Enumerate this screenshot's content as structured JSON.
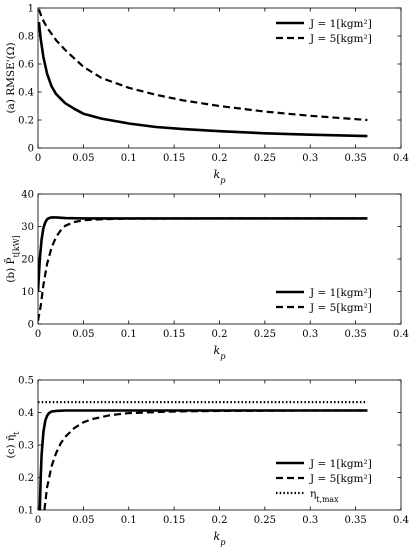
{
  "chart_data": [
    {
      "type": "line",
      "panel": "a",
      "ylabel": "(a) RMSE'(Ω)",
      "xlabel": "k_p",
      "xlim": [
        0,
        0.4
      ],
      "ylim": [
        0,
        1
      ],
      "xticks": [
        "0",
        "0.05",
        "0.1",
        "0.15",
        "0.2",
        "0.25",
        "0.3",
        "0.35",
        "0.4"
      ],
      "yticks": [
        "0",
        "0.2",
        "0.4",
        "0.6",
        "0.8",
        "1"
      ],
      "grid": false,
      "legend_position": "top-right",
      "series": [
        {
          "name": "J = 1[kgm²]",
          "style": "solid",
          "x": [
            0.001,
            0.003,
            0.006,
            0.01,
            0.015,
            0.02,
            0.03,
            0.04,
            0.05,
            0.07,
            0.1,
            0.13,
            0.16,
            0.2,
            0.25,
            0.3,
            0.363
          ],
          "y": [
            0.9,
            0.78,
            0.65,
            0.53,
            0.44,
            0.385,
            0.32,
            0.28,
            0.245,
            0.21,
            0.175,
            0.15,
            0.135,
            0.12,
            0.105,
            0.095,
            0.085
          ]
        },
        {
          "name": "J = 5[kgm²]",
          "style": "dashed",
          "x": [
            0.001,
            0.005,
            0.01,
            0.02,
            0.03,
            0.04,
            0.05,
            0.07,
            0.1,
            0.13,
            0.16,
            0.2,
            0.25,
            0.3,
            0.363
          ],
          "y": [
            0.99,
            0.92,
            0.86,
            0.77,
            0.7,
            0.64,
            0.58,
            0.5,
            0.43,
            0.38,
            0.34,
            0.3,
            0.26,
            0.23,
            0.2
          ]
        }
      ]
    },
    {
      "type": "line",
      "panel": "b",
      "ylabel": "(b) P̄_t[kW]",
      "xlabel": "k_p",
      "xlim": [
        0,
        0.4
      ],
      "ylim": [
        0,
        40
      ],
      "xticks": [
        "0",
        "0.05",
        "0.1",
        "0.15",
        "0.2",
        "0.25",
        "0.3",
        "0.35",
        "0.4"
      ],
      "yticks": [
        "0",
        "10",
        "20",
        "30",
        "40"
      ],
      "grid": false,
      "legend_position": "bottom-right",
      "series": [
        {
          "name": "J = 1[kgm²]",
          "style": "solid",
          "x": [
            0,
            0.002,
            0.004,
            0.006,
            0.008,
            0.01,
            0.012,
            0.015,
            0.02,
            0.03,
            0.05,
            0.1,
            0.2,
            0.3,
            0.363
          ],
          "y": [
            10,
            20,
            26,
            29.5,
            31.3,
            32.2,
            32.6,
            32.8,
            32.8,
            32.6,
            32.5,
            32.5,
            32.5,
            32.5,
            32.5
          ]
        },
        {
          "name": "J = 5[kgm²]",
          "style": "dashed",
          "x": [
            0,
            0.003,
            0.006,
            0.01,
            0.015,
            0.02,
            0.025,
            0.03,
            0.04,
            0.05,
            0.06,
            0.08,
            0.1,
            0.2,
            0.3,
            0.363
          ],
          "y": [
            1,
            5.5,
            12,
            18.5,
            23.5,
            26.8,
            28.8,
            30.2,
            31.4,
            31.9,
            32.1,
            32.3,
            32.4,
            32.5,
            32.5,
            32.5
          ]
        }
      ]
    },
    {
      "type": "line",
      "panel": "c",
      "ylabel": "(c) η̄_t",
      "xlabel": "k_p",
      "xlim": [
        0,
        0.4
      ],
      "ylim": [
        0.1,
        0.5
      ],
      "xticks": [
        "0",
        "0.05",
        "0.1",
        "0.15",
        "0.2",
        "0.25",
        "0.3",
        "0.35",
        "0.4"
      ],
      "yticks": [
        "0.1",
        "0.2",
        "0.3",
        "0.4",
        "0.5"
      ],
      "grid": false,
      "legend_position": "bottom-right",
      "series": [
        {
          "name": "J = 1[kgm²]",
          "style": "solid",
          "x": [
            0.002,
            0.003,
            0.004,
            0.006,
            0.008,
            0.01,
            0.012,
            0.015,
            0.02,
            0.03,
            0.05,
            0.1,
            0.2,
            0.3,
            0.363
          ],
          "y": [
            0.1,
            0.2,
            0.27,
            0.34,
            0.375,
            0.39,
            0.398,
            0.403,
            0.405,
            0.406,
            0.406,
            0.406,
            0.406,
            0.406,
            0.406
          ]
        },
        {
          "name": "J = 5[kgm²]",
          "style": "dashed",
          "x": [
            0.007,
            0.01,
            0.015,
            0.02,
            0.025,
            0.03,
            0.04,
            0.05,
            0.06,
            0.08,
            0.1,
            0.15,
            0.2,
            0.3,
            0.363
          ],
          "y": [
            0.1,
            0.17,
            0.235,
            0.275,
            0.305,
            0.325,
            0.352,
            0.37,
            0.38,
            0.392,
            0.398,
            0.403,
            0.405,
            0.406,
            0.406
          ]
        },
        {
          "name": "η_t,max",
          "style": "dotted",
          "x": [
            0,
            0.363
          ],
          "y": [
            0.432,
            0.432
          ]
        }
      ]
    }
  ]
}
